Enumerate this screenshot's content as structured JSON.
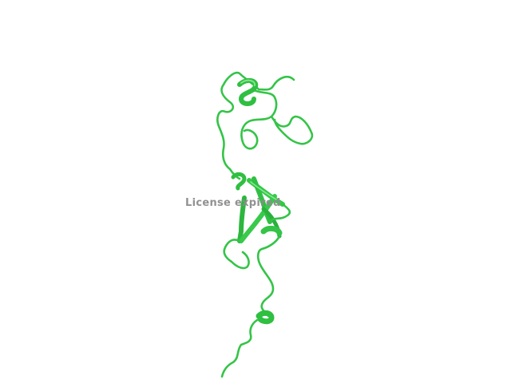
{
  "watermark": {
    "text": "License expired"
  },
  "structure": {
    "representation": "cartoon",
    "color": "#3ccf4e",
    "color_dark": "#229b33",
    "color_light": "#6fe07c"
  }
}
